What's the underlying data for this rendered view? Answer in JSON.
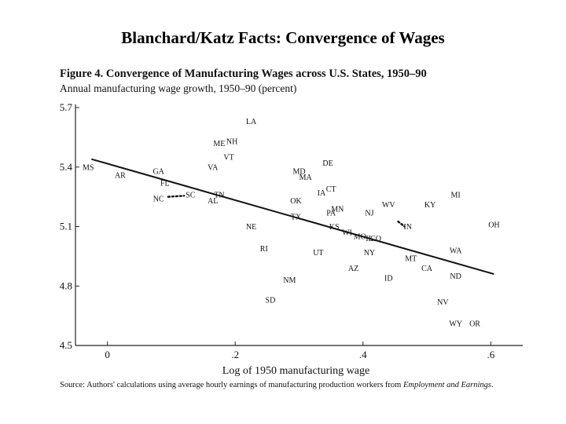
{
  "slide": {
    "title": "Blanchard/Katz Facts:  Convergence of Wages"
  },
  "chart_data": {
    "type": "scatter",
    "title": "Figure 4.  Convergence of Manufacturing Wages across U.S. States, 1950–90",
    "ylabel": "Annual manufacturing wage growth, 1950–90 (percent)",
    "xlabel": "Log of 1950 manufacturing wage",
    "xlim": [
      -0.05,
      0.65
    ],
    "ylim": [
      4.5,
      5.7
    ],
    "x_ticks": [
      0,
      0.2,
      0.4,
      0.6
    ],
    "x_tick_labels": [
      "0",
      ".2",
      ".4",
      ".6"
    ],
    "y_ticks": [
      4.5,
      4.8,
      5.1,
      5.4,
      5.7
    ],
    "y_tick_labels": [
      "4.5",
      "4.8",
      "5.1",
      "5.4",
      "5.7"
    ],
    "fit_line": {
      "x": [
        -0.025,
        0.605
      ],
      "y": [
        5.44,
        4.86
      ]
    },
    "points": [
      {
        "label": "MS",
        "x": -0.03,
        "y": 5.4
      },
      {
        "label": "AR",
        "x": 0.02,
        "y": 5.36
      },
      {
        "label": "GA",
        "x": 0.08,
        "y": 5.38
      },
      {
        "label": "FL",
        "x": 0.09,
        "y": 5.32
      },
      {
        "label": "NC",
        "x": 0.08,
        "y": 5.24
      },
      {
        "label": "SC",
        "x": 0.13,
        "y": 5.26
      },
      {
        "label": "AL",
        "x": 0.165,
        "y": 5.23
      },
      {
        "label": "TN",
        "x": 0.175,
        "y": 5.26
      },
      {
        "label": "VA",
        "x": 0.165,
        "y": 5.4
      },
      {
        "label": "ME",
        "x": 0.175,
        "y": 5.52
      },
      {
        "label": "NH",
        "x": 0.195,
        "y": 5.53
      },
      {
        "label": "VT",
        "x": 0.19,
        "y": 5.45
      },
      {
        "label": "LA",
        "x": 0.225,
        "y": 5.63
      },
      {
        "label": "NE",
        "x": 0.225,
        "y": 5.1
      },
      {
        "label": "RI",
        "x": 0.245,
        "y": 4.99
      },
      {
        "label": "MD",
        "x": 0.3,
        "y": 5.38
      },
      {
        "label": "MA",
        "x": 0.31,
        "y": 5.35
      },
      {
        "label": "DE",
        "x": 0.345,
        "y": 5.42
      },
      {
        "label": "OK",
        "x": 0.295,
        "y": 5.23
      },
      {
        "label": "TX",
        "x": 0.295,
        "y": 5.15
      },
      {
        "label": "IA",
        "x": 0.335,
        "y": 5.27
      },
      {
        "label": "CT",
        "x": 0.35,
        "y": 5.29
      },
      {
        "label": "PA",
        "x": 0.35,
        "y": 5.17
      },
      {
        "label": "MN",
        "x": 0.36,
        "y": 5.19
      },
      {
        "label": "KS",
        "x": 0.355,
        "y": 5.1
      },
      {
        "label": "WI",
        "x": 0.375,
        "y": 5.07
      },
      {
        "label": "MO",
        "x": 0.395,
        "y": 5.05
      },
      {
        "label": "IL",
        "x": 0.41,
        "y": 5.04
      },
      {
        "label": "CO",
        "x": 0.42,
        "y": 5.04
      },
      {
        "label": "NY",
        "x": 0.41,
        "y": 4.97
      },
      {
        "label": "NJ",
        "x": 0.41,
        "y": 5.17
      },
      {
        "label": "UT",
        "x": 0.33,
        "y": 4.97
      },
      {
        "label": "AZ",
        "x": 0.385,
        "y": 4.89
      },
      {
        "label": "NM",
        "x": 0.285,
        "y": 4.83
      },
      {
        "label": "SD",
        "x": 0.255,
        "y": 4.73
      },
      {
        "label": "WV",
        "x": 0.44,
        "y": 5.21
      },
      {
        "label": "IN",
        "x": 0.47,
        "y": 5.1
      },
      {
        "label": "KY",
        "x": 0.505,
        "y": 5.21
      },
      {
        "label": "MI",
        "x": 0.545,
        "y": 5.26
      },
      {
        "label": "OH",
        "x": 0.605,
        "y": 5.11
      },
      {
        "label": "WA",
        "x": 0.545,
        "y": 4.98
      },
      {
        "label": "MT",
        "x": 0.475,
        "y": 4.94
      },
      {
        "label": "CA",
        "x": 0.5,
        "y": 4.89
      },
      {
        "label": "ND",
        "x": 0.545,
        "y": 4.85
      },
      {
        "label": "ID",
        "x": 0.44,
        "y": 4.84
      },
      {
        "label": "NV",
        "x": 0.525,
        "y": 4.72
      },
      {
        "label": "WY",
        "x": 0.545,
        "y": 4.61
      },
      {
        "label": "OR",
        "x": 0.575,
        "y": 4.61
      }
    ],
    "connectors": [
      {
        "from": [
          0.095,
          5.25
        ],
        "to": [
          0.12,
          5.255
        ]
      },
      {
        "from": [
          0.455,
          5.125
        ],
        "to": [
          0.465,
          5.1
        ]
      }
    ]
  },
  "source": {
    "prefix": "Source:  Authors' calculations using average hourly earnings of manufacturing production workers from ",
    "italic": "Employment and Earnings",
    "suffix": "."
  }
}
